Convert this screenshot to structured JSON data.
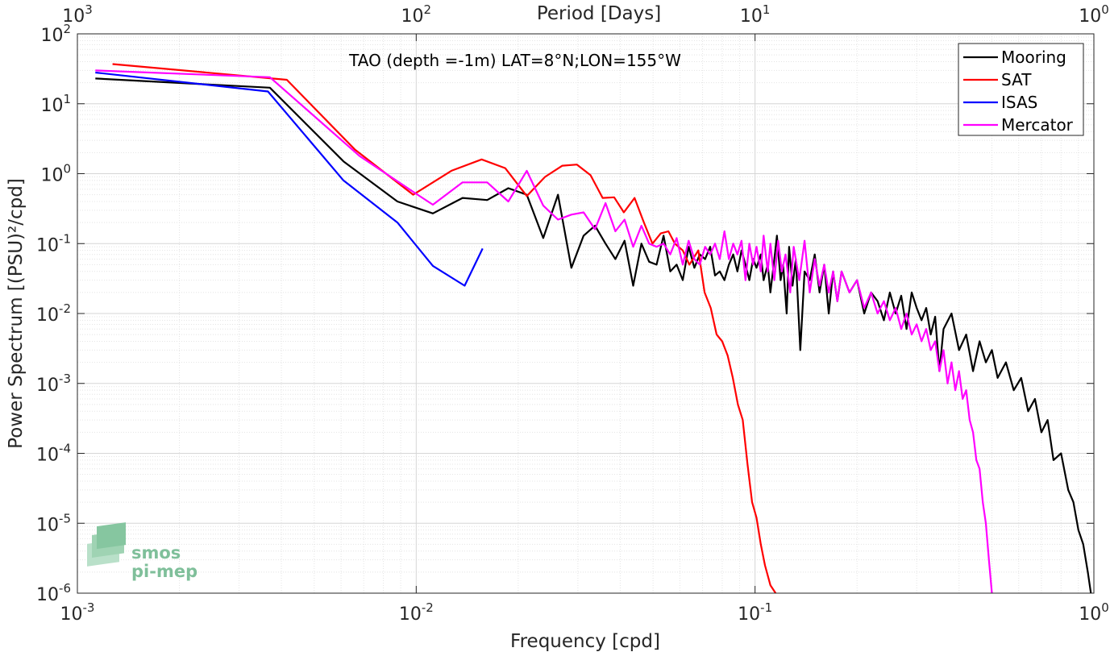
{
  "chart_data": {
    "type": "line",
    "title": "TAO (depth =-1m) LAT=8°N;LON=155°W",
    "xlabel": "Frequency [cpd]",
    "ylabel": "Power Spectrum [(PSU)²/cpd]",
    "x2label": "Period [Days]",
    "x_scale": "log",
    "y_scale": "log",
    "xlim": [
      0.001,
      1
    ],
    "ylim": [
      1e-06,
      100
    ],
    "grid": true,
    "legend_position": "top-right",
    "x_ticks": [
      {
        "base": "10",
        "exp": "-3"
      },
      {
        "base": "10",
        "exp": "-2"
      },
      {
        "base": "10",
        "exp": "-1"
      },
      {
        "base": "10",
        "exp": "0"
      }
    ],
    "x2_ticks": [
      {
        "base": "10",
        "exp": "3"
      },
      {
        "base": "10",
        "exp": "2"
      },
      {
        "base": "10",
        "exp": "1"
      },
      {
        "base": "10",
        "exp": "0"
      }
    ],
    "y_ticks": [
      {
        "base": "10",
        "exp": "-6"
      },
      {
        "base": "10",
        "exp": "-5"
      },
      {
        "base": "10",
        "exp": "-4"
      },
      {
        "base": "10",
        "exp": "-3"
      },
      {
        "base": "10",
        "exp": "-2"
      },
      {
        "base": "10",
        "exp": "-1"
      },
      {
        "base": "10",
        "exp": "0"
      },
      {
        "base": "10",
        "exp": "1"
      },
      {
        "base": "10",
        "exp": "2"
      }
    ],
    "series": [
      {
        "name": "Mooring",
        "color": "#000000",
        "points": [
          [
            0.00113,
            23
          ],
          [
            0.0037,
            17
          ],
          [
            0.0061,
            1.5
          ],
          [
            0.0088,
            0.4
          ],
          [
            0.0112,
            0.27
          ],
          [
            0.0137,
            0.45
          ],
          [
            0.0162,
            0.42
          ],
          [
            0.0187,
            0.62
          ],
          [
            0.0212,
            0.5
          ],
          [
            0.0237,
            0.12
          ],
          [
            0.0262,
            0.5
          ],
          [
            0.0287,
            0.045
          ],
          [
            0.0312,
            0.13
          ],
          [
            0.0337,
            0.18
          ],
          [
            0.0362,
            0.1
          ],
          [
            0.0387,
            0.06
          ],
          [
            0.0412,
            0.11
          ],
          [
            0.0437,
            0.025
          ],
          [
            0.0462,
            0.1
          ],
          [
            0.0487,
            0.055
          ],
          [
            0.0512,
            0.05
          ],
          [
            0.0537,
            0.13
          ],
          [
            0.0562,
            0.04
          ],
          [
            0.0587,
            0.05
          ],
          [
            0.0612,
            0.03
          ],
          [
            0.0637,
            0.09
          ],
          [
            0.0662,
            0.045
          ],
          [
            0.0687,
            0.07
          ],
          [
            0.0712,
            0.06
          ],
          [
            0.0737,
            0.09
          ],
          [
            0.0762,
            0.035
          ],
          [
            0.0787,
            0.04
          ],
          [
            0.0812,
            0.03
          ],
          [
            0.0837,
            0.05
          ],
          [
            0.0862,
            0.07
          ],
          [
            0.0887,
            0.04
          ],
          [
            0.0912,
            0.08
          ],
          [
            0.0937,
            0.05
          ],
          [
            0.0962,
            0.03
          ],
          [
            0.0987,
            0.06
          ],
          [
            0.101,
            0.045
          ],
          [
            0.104,
            0.07
          ],
          [
            0.106,
            0.03
          ],
          [
            0.109,
            0.05
          ],
          [
            0.111,
            0.02
          ],
          [
            0.114,
            0.06
          ],
          [
            0.116,
            0.13
          ],
          [
            0.119,
            0.03
          ],
          [
            0.121,
            0.05
          ],
          [
            0.124,
            0.01
          ],
          [
            0.126,
            0.09
          ],
          [
            0.129,
            0.025
          ],
          [
            0.132,
            0.06
          ],
          [
            0.136,
            0.003
          ],
          [
            0.14,
            0.04
          ],
          [
            0.145,
            0.03
          ],
          [
            0.15,
            0.07
          ],
          [
            0.155,
            0.02
          ],
          [
            0.16,
            0.05
          ],
          [
            0.165,
            0.01
          ],
          [
            0.17,
            0.04
          ],
          [
            0.175,
            0.015
          ],
          [
            0.18,
            0.04
          ],
          [
            0.19,
            0.02
          ],
          [
            0.2,
            0.03
          ],
          [
            0.21,
            0.01
          ],
          [
            0.22,
            0.02
          ],
          [
            0.23,
            0.015
          ],
          [
            0.24,
            0.008
          ],
          [
            0.25,
            0.02
          ],
          [
            0.26,
            0.01
          ],
          [
            0.27,
            0.018
          ],
          [
            0.28,
            0.006
          ],
          [
            0.29,
            0.02
          ],
          [
            0.3,
            0.012
          ],
          [
            0.31,
            0.008
          ],
          [
            0.32,
            0.012
          ],
          [
            0.33,
            0.005
          ],
          [
            0.34,
            0.009
          ],
          [
            0.35,
            0.0015
          ],
          [
            0.36,
            0.006
          ],
          [
            0.38,
            0.01
          ],
          [
            0.4,
            0.003
          ],
          [
            0.42,
            0.005
          ],
          [
            0.44,
            0.0015
          ],
          [
            0.46,
            0.004
          ],
          [
            0.48,
            0.002
          ],
          [
            0.5,
            0.003
          ],
          [
            0.52,
            0.0012
          ],
          [
            0.55,
            0.002
          ],
          [
            0.58,
            0.0008
          ],
          [
            0.61,
            0.0012
          ],
          [
            0.64,
            0.0004
          ],
          [
            0.67,
            0.0006
          ],
          [
            0.7,
            0.0002
          ],
          [
            0.73,
            0.0003
          ],
          [
            0.76,
            8e-05
          ],
          [
            0.8,
            0.0001
          ],
          [
            0.84,
            3e-05
          ],
          [
            0.87,
            2e-05
          ],
          [
            0.9,
            8e-06
          ],
          [
            0.93,
            5e-06
          ],
          [
            0.96,
            2e-06
          ],
          [
            0.98,
            1e-06
          ]
        ]
      },
      {
        "name": "SAT",
        "color": "#ff0000",
        "points": [
          [
            0.00127,
            37
          ],
          [
            0.00415,
            22
          ],
          [
            0.0066,
            2.2
          ],
          [
            0.0098,
            0.5
          ],
          [
            0.0127,
            1.1
          ],
          [
            0.0156,
            1.6
          ],
          [
            0.0183,
            1.2
          ],
          [
            0.0212,
            0.48
          ],
          [
            0.024,
            0.9
          ],
          [
            0.027,
            1.3
          ],
          [
            0.0298,
            1.35
          ],
          [
            0.0327,
            0.95
          ],
          [
            0.0355,
            0.45
          ],
          [
            0.0384,
            0.46
          ],
          [
            0.041,
            0.28
          ],
          [
            0.0441,
            0.45
          ],
          [
            0.047,
            0.2
          ],
          [
            0.0498,
            0.1
          ],
          [
            0.0527,
            0.14
          ],
          [
            0.0555,
            0.15
          ],
          [
            0.058,
            0.1
          ],
          [
            0.0612,
            0.08
          ],
          [
            0.064,
            0.05
          ],
          [
            0.068,
            0.08
          ],
          [
            0.071,
            0.02
          ],
          [
            0.074,
            0.012
          ],
          [
            0.077,
            0.005
          ],
          [
            0.08,
            0.004
          ],
          [
            0.083,
            0.0025
          ],
          [
            0.086,
            0.0012
          ],
          [
            0.089,
            0.0005
          ],
          [
            0.092,
            0.0003
          ],
          [
            0.095,
            7e-05
          ],
          [
            0.098,
            2e-05
          ],
          [
            0.101,
            1.2e-05
          ],
          [
            0.104,
            5e-06
          ],
          [
            0.107,
            2.5e-06
          ],
          [
            0.111,
            1.3e-06
          ],
          [
            0.115,
            1e-06
          ]
        ]
      },
      {
        "name": "ISAS",
        "color": "#0000ff",
        "points": [
          [
            0.00113,
            28
          ],
          [
            0.00365,
            15
          ],
          [
            0.0061,
            0.8
          ],
          [
            0.0088,
            0.2
          ],
          [
            0.0112,
            0.048
          ],
          [
            0.0139,
            0.025
          ],
          [
            0.0157,
            0.085
          ]
        ]
      },
      {
        "name": "Mercator",
        "color": "#ff00ff",
        "points": [
          [
            0.00113,
            30
          ],
          [
            0.0037,
            24
          ],
          [
            0.0068,
            1.8
          ],
          [
            0.0098,
            0.55
          ],
          [
            0.0112,
            0.36
          ],
          [
            0.0137,
            0.75
          ],
          [
            0.0162,
            0.75
          ],
          [
            0.0187,
            0.4
          ],
          [
            0.0212,
            1.1
          ],
          [
            0.0237,
            0.35
          ],
          [
            0.0262,
            0.22
          ],
          [
            0.0287,
            0.26
          ],
          [
            0.0312,
            0.28
          ],
          [
            0.0337,
            0.16
          ],
          [
            0.0362,
            0.38
          ],
          [
            0.0387,
            0.15
          ],
          [
            0.0412,
            0.22
          ],
          [
            0.0437,
            0.09
          ],
          [
            0.0462,
            0.18
          ],
          [
            0.0487,
            0.1
          ],
          [
            0.0512,
            0.09
          ],
          [
            0.0537,
            0.1
          ],
          [
            0.0562,
            0.07
          ],
          [
            0.0587,
            0.12
          ],
          [
            0.0612,
            0.05
          ],
          [
            0.0637,
            0.11
          ],
          [
            0.0662,
            0.06
          ],
          [
            0.0687,
            0.05
          ],
          [
            0.0712,
            0.09
          ],
          [
            0.0737,
            0.07
          ],
          [
            0.0762,
            0.1
          ],
          [
            0.0787,
            0.06
          ],
          [
            0.0812,
            0.15
          ],
          [
            0.0837,
            0.06
          ],
          [
            0.0862,
            0.1
          ],
          [
            0.0887,
            0.07
          ],
          [
            0.0912,
            0.11
          ],
          [
            0.0937,
            0.03
          ],
          [
            0.0962,
            0.1
          ],
          [
            0.0987,
            0.05
          ],
          [
            0.101,
            0.09
          ],
          [
            0.104,
            0.04
          ],
          [
            0.106,
            0.13
          ],
          [
            0.109,
            0.04
          ],
          [
            0.111,
            0.1
          ],
          [
            0.114,
            0.03
          ],
          [
            0.117,
            0.11
          ],
          [
            0.12,
            0.04
          ],
          [
            0.123,
            0.07
          ],
          [
            0.127,
            0.02
          ],
          [
            0.13,
            0.09
          ],
          [
            0.135,
            0.03
          ],
          [
            0.14,
            0.11
          ],
          [
            0.145,
            0.02
          ],
          [
            0.15,
            0.06
          ],
          [
            0.155,
            0.025
          ],
          [
            0.16,
            0.05
          ],
          [
            0.165,
            0.02
          ],
          [
            0.17,
            0.04
          ],
          [
            0.175,
            0.015
          ],
          [
            0.18,
            0.04
          ],
          [
            0.19,
            0.02
          ],
          [
            0.2,
            0.03
          ],
          [
            0.21,
            0.012
          ],
          [
            0.22,
            0.02
          ],
          [
            0.23,
            0.01
          ],
          [
            0.24,
            0.015
          ],
          [
            0.25,
            0.008
          ],
          [
            0.26,
            0.012
          ],
          [
            0.27,
            0.006
          ],
          [
            0.28,
            0.01
          ],
          [
            0.29,
            0.005
          ],
          [
            0.3,
            0.007
          ],
          [
            0.31,
            0.004
          ],
          [
            0.32,
            0.006
          ],
          [
            0.33,
            0.003
          ],
          [
            0.34,
            0.004
          ],
          [
            0.35,
            0.0015
          ],
          [
            0.36,
            0.003
          ],
          [
            0.37,
            0.001
          ],
          [
            0.38,
            0.002
          ],
          [
            0.39,
            0.0008
          ],
          [
            0.4,
            0.0015
          ],
          [
            0.41,
            0.0006
          ],
          [
            0.42,
            0.0008
          ],
          [
            0.43,
            0.0003
          ],
          [
            0.44,
            0.0002
          ],
          [
            0.45,
            8e-05
          ],
          [
            0.46,
            6e-05
          ],
          [
            0.47,
            2e-05
          ],
          [
            0.48,
            1e-05
          ],
          [
            0.49,
            3e-06
          ],
          [
            0.5,
            1e-06
          ]
        ]
      }
    ]
  },
  "logo": {
    "line1": "smos",
    "line2": "pi-mep"
  }
}
